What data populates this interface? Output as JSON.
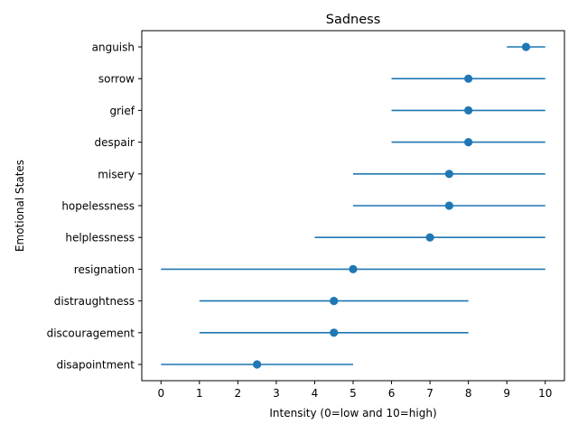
{
  "chart_data": {
    "type": "scatter",
    "title": "Sadness",
    "xlabel": "Intensity (0=low and 10=high)",
    "ylabel": "Emotional States",
    "xlim": [
      -0.5,
      10.5
    ],
    "xticks": [
      0,
      1,
      2,
      3,
      4,
      5,
      6,
      7,
      8,
      9,
      10
    ],
    "grid": false,
    "color": "#1f77b4",
    "categories": [
      "anguish",
      "sorrow",
      "grief",
      "despair",
      "misery",
      "hopelessness",
      "helplessness",
      "resignation",
      "distraughtness",
      "discouragement",
      "disapointment"
    ],
    "values": [
      9.5,
      8,
      8,
      8,
      7.5,
      7.5,
      7,
      5,
      4.5,
      4.5,
      2.5
    ],
    "range_low": [
      9,
      6,
      6,
      6,
      5,
      5,
      4,
      0,
      1,
      1,
      0
    ],
    "range_high": [
      10,
      10,
      10,
      10,
      10,
      10,
      10,
      10,
      8,
      8,
      5
    ]
  }
}
